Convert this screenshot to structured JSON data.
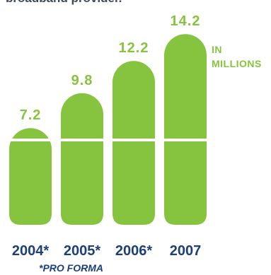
{
  "intro_text": "broadband provider.",
  "unit_label": [
    "IN",
    "MILLIONS"
  ],
  "footnote": "*PRO FORMA",
  "colors": {
    "bar": "#86c440",
    "band": "#ffffff",
    "value_label": "#86c440",
    "year_label": "#1d3f7a"
  },
  "chart_data": {
    "type": "bar",
    "categories": [
      "2004*",
      "2005*",
      "2006*",
      "2007"
    ],
    "values": [
      7.2,
      9.8,
      12.2,
      14.2
    ],
    "value_labels": [
      "7.2",
      "9.8",
      "12.2",
      "14.2"
    ],
    "title": "",
    "xlabel": "",
    "ylabel": "",
    "unit": "IN MILLIONS",
    "bar_shape": "rounded-top pill with horizontal white band",
    "grid": false,
    "legend": "none"
  }
}
